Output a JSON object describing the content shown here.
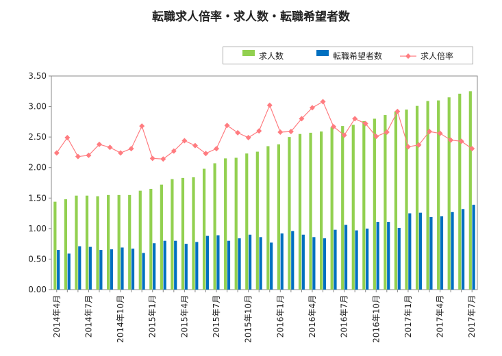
{
  "chart_data": {
    "type": "bar",
    "title": "転職求人倍率・求人数・転職希望者数",
    "x": [
      "2014年4月",
      "2014年5月",
      "2014年6月",
      "2014年7月",
      "2014年8月",
      "2014年9月",
      "2014年10月",
      "2014年11月",
      "2014年12月",
      "2015年1月",
      "2015年2月",
      "2015年3月",
      "2015年4月",
      "2015年5月",
      "2015年6月",
      "2015年7月",
      "2015年8月",
      "2015年9月",
      "2015年10月",
      "2015年11月",
      "2015年12月",
      "2016年1月",
      "2016年2月",
      "2016年3月",
      "2016年4月",
      "2016年5月",
      "2016年6月",
      "2016年7月",
      "2016年8月",
      "2016年9月",
      "2016年10月",
      "2016年11月",
      "2016年12月",
      "2017年1月",
      "2017年2月",
      "2017年3月",
      "2017年4月",
      "2017年5月",
      "2017年6月",
      "2017年7月"
    ],
    "tick_labels": [
      "2014年4月",
      "2014年7月",
      "2014年10月",
      "2015年1月",
      "2015年4月",
      "2015年7月",
      "2015年10月",
      "2016年1月",
      "2016年4月",
      "2016年7月",
      "2016年10月",
      "2017年1月",
      "2017年4月",
      "2017年7月"
    ],
    "y_ticks": [
      "0.00",
      "0.50",
      "1.00",
      "1.50",
      "2.00",
      "2.50",
      "3.00",
      "3.50"
    ],
    "ylim": [
      0,
      3.5
    ],
    "series": [
      {
        "name": "求人数",
        "type": "bar",
        "color": "#92d050",
        "values": [
          1.44,
          1.48,
          1.54,
          1.54,
          1.53,
          1.55,
          1.55,
          1.55,
          1.62,
          1.65,
          1.72,
          1.81,
          1.83,
          1.84,
          1.98,
          2.07,
          2.15,
          2.16,
          2.23,
          2.26,
          2.35,
          2.38,
          2.5,
          2.55,
          2.57,
          2.59,
          2.66,
          2.68,
          2.7,
          2.76,
          2.8,
          2.86,
          2.92,
          2.95,
          3.01,
          3.09,
          3.1,
          3.15,
          3.21,
          3.25
        ]
      },
      {
        "name": "転職希望者数",
        "type": "bar",
        "color": "#0070c0",
        "values": [
          0.65,
          0.59,
          0.71,
          0.7,
          0.65,
          0.66,
          0.69,
          0.67,
          0.6,
          0.76,
          0.8,
          0.8,
          0.75,
          0.78,
          0.88,
          0.89,
          0.8,
          0.84,
          0.9,
          0.86,
          0.77,
          0.92,
          0.96,
          0.9,
          0.86,
          0.84,
          0.98,
          1.06,
          0.97,
          1.0,
          1.11,
          1.11,
          1.01,
          1.25,
          1.26,
          1.19,
          1.2,
          1.27,
          1.32,
          1.39
        ]
      },
      {
        "name": "求人倍率",
        "type": "line",
        "color": "#ff7c80",
        "values": [
          2.24,
          2.49,
          2.18,
          2.2,
          2.38,
          2.33,
          2.24,
          2.31,
          2.68,
          2.15,
          2.14,
          2.27,
          2.44,
          2.36,
          2.23,
          2.31,
          2.69,
          2.57,
          2.49,
          2.6,
          3.02,
          2.58,
          2.59,
          2.8,
          2.98,
          3.08,
          2.67,
          2.53,
          2.8,
          2.72,
          2.51,
          2.58,
          2.92,
          2.34,
          2.37,
          2.59,
          2.56,
          2.45,
          2.43,
          2.31
        ]
      }
    ],
    "legend_position": "top-right",
    "grid": false
  }
}
